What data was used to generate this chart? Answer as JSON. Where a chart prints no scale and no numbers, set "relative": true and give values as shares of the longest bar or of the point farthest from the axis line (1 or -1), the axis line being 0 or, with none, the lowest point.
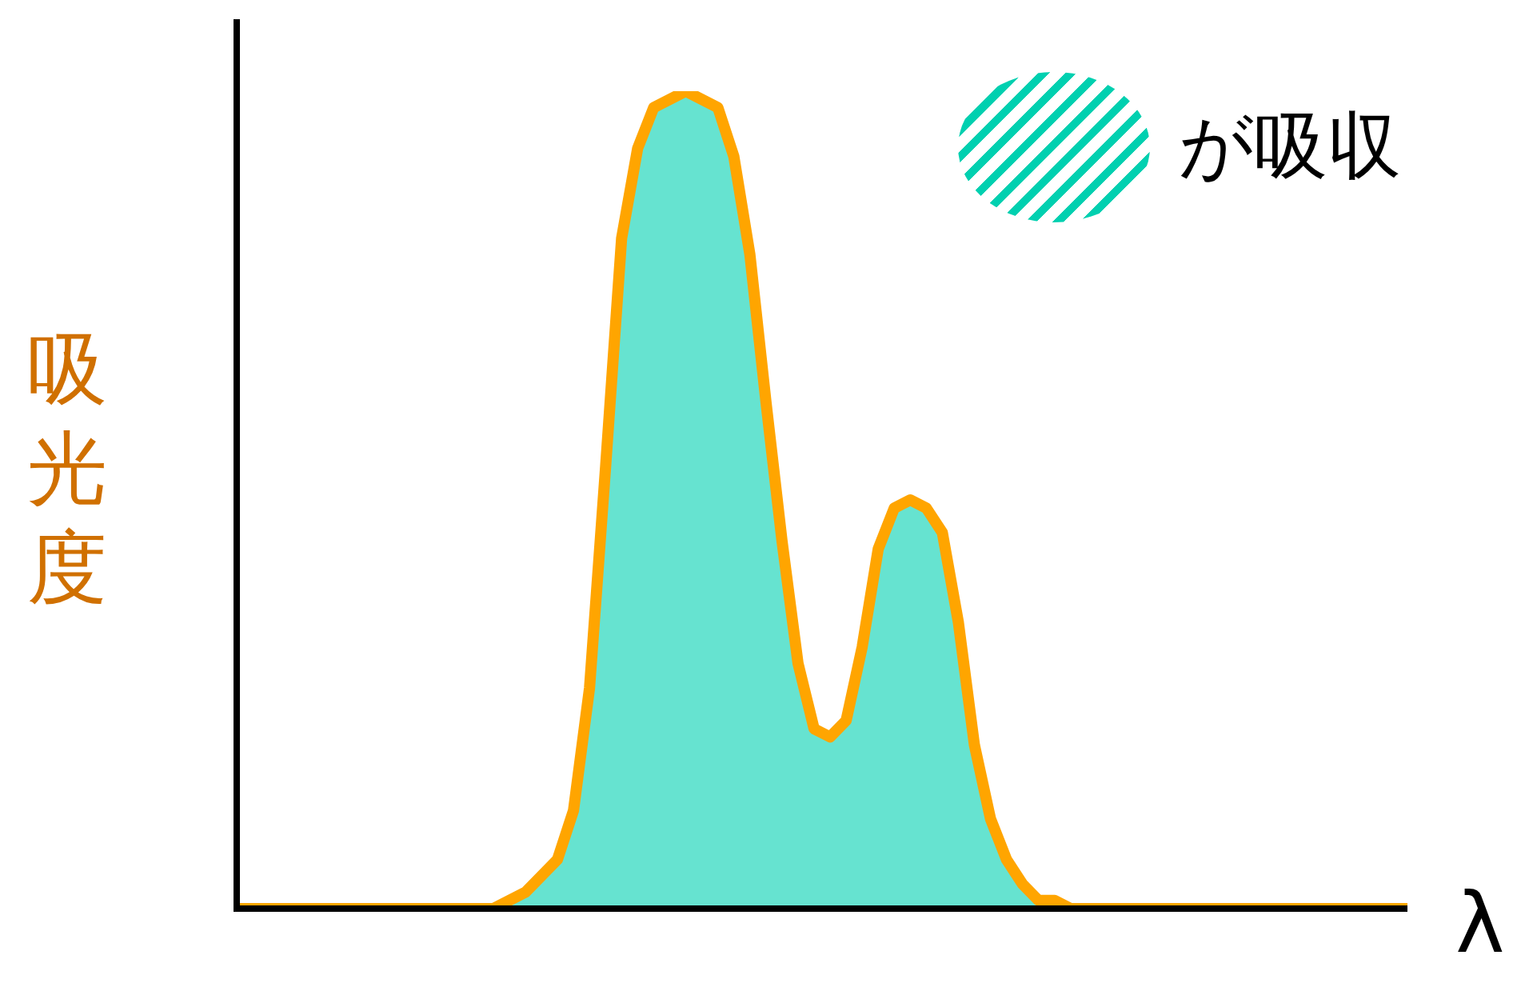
{
  "chart_data": {
    "type": "area",
    "relative": true,
    "ylabel": "吸光度",
    "xlabel": "λ",
    "legend": "top right",
    "categories": [
      null,
      null,
      null,
      null,
      null,
      null,
      null,
      null,
      null,
      null,
      null,
      null,
      null,
      null,
      null,
      null,
      null,
      null,
      null,
      null,
      null,
      null,
      null,
      null,
      null,
      null,
      null,
      null,
      null,
      null,
      null,
      null,
      null,
      null,
      null,
      null,
      null,
      null,
      null,
      null,
      null,
      null,
      null,
      null,
      null,
      null,
      null,
      null,
      null,
      null,
      null,
      null,
      null,
      null,
      null,
      null,
      null,
      null,
      null,
      null,
      null,
      null,
      null,
      null,
      null,
      null,
      null,
      null,
      null,
      null,
      null,
      null,
      null,
      null
    ],
    "series": [
      {
        "name": "が吸収",
        "color": "#00d0b0",
        "values": [
          0,
          0,
          0,
          0,
          0,
          0,
          0,
          0,
          0,
          0,
          0,
          0,
          0,
          0,
          0,
          0,
          0,
          0.01,
          0.02,
          0.04,
          0.06,
          0.12,
          0.27,
          0.54,
          0.82,
          0.93,
          0.98,
          0.99,
          1,
          0.99,
          0.98,
          0.92,
          0.8,
          0.62,
          0.45,
          0.3,
          0.22,
          0.21,
          0.23,
          0.32,
          0.44,
          0.49,
          0.5,
          0.49,
          0.46,
          0.35,
          0.2,
          0.11,
          0.06,
          0.03,
          0.01,
          0.01,
          0,
          0,
          0,
          0,
          0,
          0,
          0,
          0,
          0,
          0,
          0,
          0,
          0,
          0,
          0,
          0,
          0,
          0,
          0,
          0,
          0,
          0
        ]
      }
    ]
  }
}
